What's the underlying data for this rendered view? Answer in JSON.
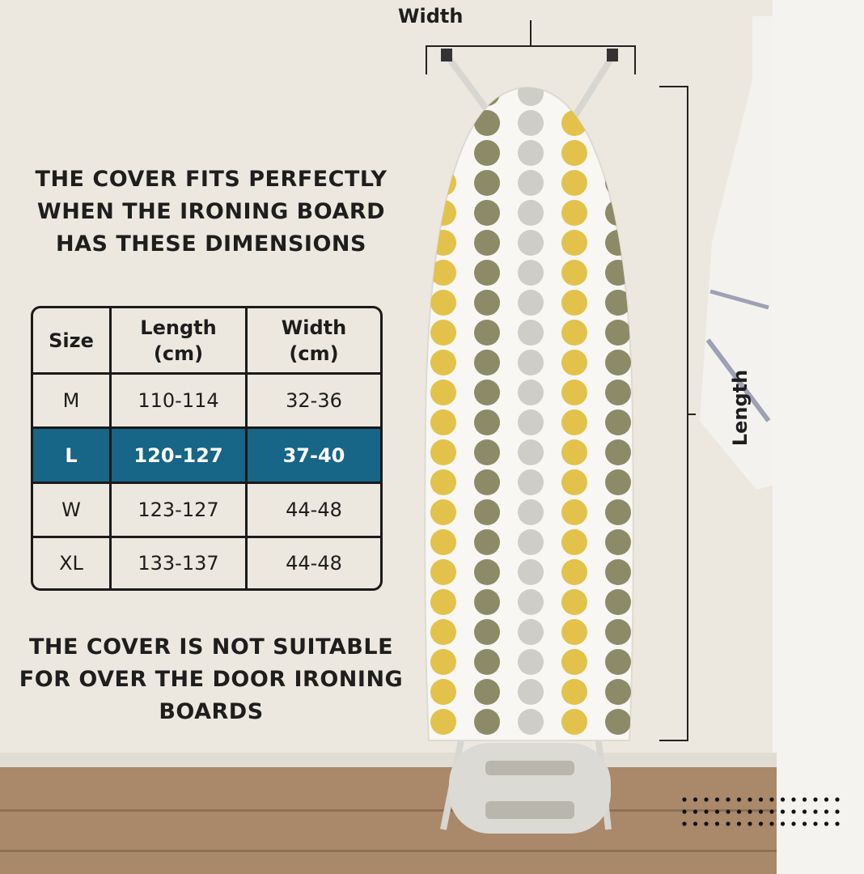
{
  "headline_top": "THE COVER FITS PERFECTLY WHEN THE IRONING BOARD HAS THESE DIMENSIONS",
  "headline_bottom": "THE COVER IS NOT SUITABLE FOR OVER THE DOOR IRONING BOARDS",
  "size_table": {
    "headers": [
      "Size",
      "Length (cm)",
      "Width (cm)"
    ],
    "rows": [
      {
        "size": "M",
        "length": "110-114",
        "width": "32-36"
      },
      {
        "size": "L",
        "length": "120-127",
        "width": "37-40"
      },
      {
        "size": "W",
        "length": "123-127",
        "width": "44-48"
      },
      {
        "size": "XL",
        "length": "133-137",
        "width": "44-48"
      }
    ],
    "highlighted_size": "L",
    "highlight_color": "#176587"
  },
  "dimensions": {
    "width_label": "Width",
    "length_label": "Length"
  },
  "pattern_colors": [
    "#e3c24c",
    "#8d8a68",
    "#cfcdc7"
  ]
}
